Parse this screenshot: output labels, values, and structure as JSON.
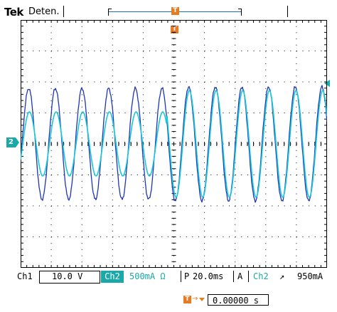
{
  "brand": "Tek",
  "acquisition_status": "Deten.",
  "trigger_marker_label": "T",
  "channel_marker_label": "2",
  "colors": {
    "ch1_trace": "#1f35b5",
    "ch2_trace": "#17c8d8",
    "trigger_accent": "#e77b22",
    "channel_tag": "#1aa8a8",
    "grid": "#000000"
  },
  "status_bar": {
    "ch1_label": "Ch1",
    "ch1_scale": "10.0 V",
    "ch2_label": "Ch2",
    "ch2_scale": "500mA Ω",
    "horizontal_prefix": "P",
    "horizontal_scale": "20.0ms",
    "trigger_mode": "A",
    "trigger_source": "Ch2",
    "trigger_slope_icon": "rising-edge-icon",
    "trigger_level": "950mA"
  },
  "trigger_position": {
    "icon": "trigger-position-icon",
    "value": "0.00000 s"
  }
}
